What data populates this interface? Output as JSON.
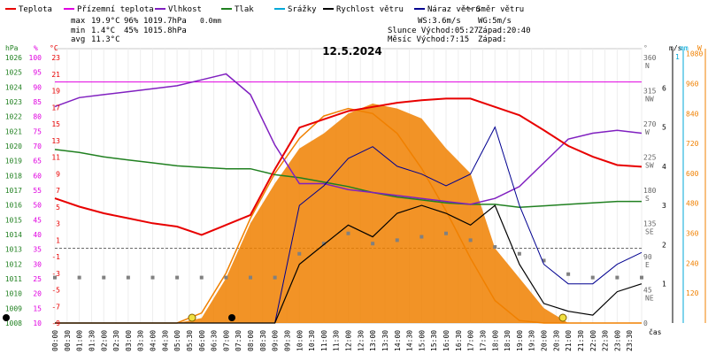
{
  "chart_data": {
    "type": "line",
    "title": "12.5.2024",
    "xlabel": "čas",
    "colors": {
      "temperature": "#e80000",
      "feels_like": "#e000e0",
      "humidity": "#8020c0",
      "pressure": "#208020",
      "rain": "#00a8d8",
      "wind_speed": "#000000",
      "wind_gust": "#000090",
      "wind_dir": "#808080",
      "sun": "#f08000"
    },
    "legend": [
      {
        "key": "temperature",
        "label": "Teplota"
      },
      {
        "key": "feels_like",
        "label": "Přízemní teplota"
      },
      {
        "key": "humidity",
        "label": "Vlhkost"
      },
      {
        "key": "pressure",
        "label": "Tlak"
      },
      {
        "key": "rain",
        "label": "Srážky"
      },
      {
        "key": "wind_speed",
        "label": "Rychlost větru"
      },
      {
        "key": "wind_gust",
        "label": "Náraz větru"
      },
      {
        "key": "wind_dir",
        "label": "Směr větru"
      }
    ],
    "stats": {
      "max_label": "max",
      "min_label": "min",
      "avg_label": "avg",
      "max_temp": "19.9°C",
      "max_hum": "96%",
      "max_press": "1019.7hPa",
      "max_rain": "0.0mm",
      "min_temp": "1.4°C",
      "min_hum": "45%",
      "min_press": "1015.8hPa",
      "avg_temp": "11.3°C",
      "ws": "WS:3.6m/s",
      "wg": "WG:5m/s",
      "sunrise_label": "Slunce Východ:05:27",
      "sunset_label": "Západ:20:40",
      "moonrise_label": "Měsíc  Východ:7:15",
      "moonset_label": "Západ:"
    },
    "axes": {
      "hpa_unit": "hPa",
      "pct_unit": "%",
      "temp_unit": "°C",
      "deg_unit": "°",
      "ms_unit": "m/s",
      "mm_unit": "mm",
      "w_unit": "W",
      "hpa_ticks": [
        "1026",
        "1025",
        "1024",
        "1023",
        "1022",
        "1021",
        "1020",
        "1019",
        "1018",
        "1017",
        "1016",
        "1015",
        "1014",
        "1013",
        "1012",
        "1011",
        "1010",
        "1009",
        "1008"
      ],
      "pct_ticks": [
        "100",
        "95",
        "90",
        "85",
        "80",
        "75",
        "70",
        "65",
        "60",
        "55",
        "50",
        "45",
        "40",
        "35",
        "30",
        "25",
        "20",
        "15",
        "10"
      ],
      "temp_ticks": [
        "23",
        "21",
        "19",
        "17",
        "15",
        "13",
        "11",
        "9",
        "7",
        "5",
        "3",
        "1",
        "-1",
        "-3",
        "-5",
        "-7",
        "-9"
      ],
      "dir_ticks": [
        {
          "deg": "360",
          "lbl": "N"
        },
        {
          "deg": "315",
          "lbl": "NW"
        },
        {
          "deg": "270",
          "lbl": "W"
        },
        {
          "deg": "225",
          "lbl": "SW"
        },
        {
          "deg": "180",
          "lbl": "S"
        },
        {
          "deg": "135",
          "lbl": "SE"
        },
        {
          "deg": "90",
          "lbl": "E"
        },
        {
          "deg": "45",
          "lbl": "NE"
        },
        {
          "deg": "0",
          "lbl": ""
        }
      ],
      "ms_ticks": [
        "6",
        "5",
        "4",
        "3",
        "2",
        "1"
      ],
      "mm_ticks": [
        "1"
      ],
      "w_ticks": [
        "1080",
        "960",
        "840",
        "720",
        "600",
        "480",
        "360",
        "240",
        "120"
      ],
      "time_ticks": [
        "00:00",
        "00:30",
        "01:00",
        "01:30",
        "02:00",
        "02:30",
        "03:00",
        "03:30",
        "04:00",
        "04:30",
        "05:00",
        "05:30",
        "06:00",
        "06:30",
        "07:00",
        "07:30",
        "08:00",
        "08:30",
        "09:00",
        "09:30",
        "10:00",
        "10:30",
        "11:00",
        "11:30",
        "12:00",
        "12:30",
        "13:00",
        "13:30",
        "14:00",
        "14:30",
        "15:00",
        "15:30",
        "16:00",
        "16:30",
        "17:00",
        "17:30",
        "18:00",
        "18:30",
        "19:00",
        "19:30",
        "20:00",
        "20:30",
        "21:00",
        "21:30",
        "22:00",
        "22:30",
        "23:00",
        "23:30"
      ]
    },
    "hours": [
      0,
      1,
      2,
      3,
      4,
      5,
      6,
      7,
      8,
      9,
      10,
      11,
      12,
      13,
      14,
      15,
      16,
      17,
      18,
      19,
      20,
      21,
      22,
      23,
      24
    ],
    "series": {
      "temperature": [
        6.0,
        5.0,
        4.2,
        3.6,
        3.0,
        2.6,
        1.6,
        2.8,
        4.0,
        9.5,
        14.5,
        15.5,
        16.5,
        17.0,
        17.5,
        17.8,
        18.0,
        18.0,
        17.0,
        16.0,
        14.2,
        12.3,
        11.0,
        10.0,
        9.8
      ],
      "feels_like": [
        20,
        20,
        20,
        20,
        20,
        20,
        20,
        20,
        20,
        20,
        20,
        20,
        20,
        20,
        20,
        20,
        20,
        20,
        20,
        20,
        20,
        20,
        20,
        20,
        20
      ],
      "humidity": [
        83,
        86,
        87,
        88,
        89,
        90,
        92,
        94,
        87,
        70,
        57,
        57,
        55,
        54,
        53,
        52,
        51,
        50,
        52,
        56,
        64,
        72,
        74,
        75,
        74
      ],
      "pressure": [
        1019.7,
        1019.5,
        1019.2,
        1019.0,
        1018.8,
        1018.6,
        1018.5,
        1018.4,
        1018.4,
        1018.0,
        1017.8,
        1017.5,
        1017.2,
        1016.8,
        1016.5,
        1016.3,
        1016.1,
        1016.0,
        1016.0,
        1015.8,
        1015.9,
        1016.0,
        1016.1,
        1016.2,
        1016.2
      ],
      "wind_speed": [
        0,
        0,
        0,
        0,
        0,
        0,
        0,
        0,
        0,
        0,
        1.5,
        2.0,
        2.5,
        2.2,
        2.8,
        3.0,
        2.8,
        2.5,
        3.0,
        1.5,
        0.5,
        0.3,
        0.2,
        0.8,
        1.0
      ],
      "wind_gust": [
        0,
        0,
        0,
        0,
        0,
        0,
        0,
        0,
        0,
        0,
        3.0,
        3.5,
        4.2,
        4.5,
        4.0,
        3.8,
        3.5,
        3.8,
        5.0,
        3.0,
        1.5,
        1.0,
        1.0,
        1.5,
        1.8
      ],
      "solar": [
        0,
        0,
        0,
        0,
        0,
        0,
        20,
        180,
        400,
        560,
        700,
        760,
        840,
        880,
        860,
        820,
        700,
        600,
        300,
        180,
        60,
        0,
        0,
        0,
        0
      ],
      "sun_theoretical": [
        0,
        0,
        0,
        0,
        0,
        0,
        40,
        200,
        420,
        600,
        740,
        830,
        860,
        840,
        760,
        620,
        450,
        260,
        90,
        10,
        0,
        0,
        0,
        0,
        0
      ],
      "wind_dir": [
        45,
        45,
        45,
        45,
        45,
        45,
        45,
        45,
        45,
        45,
        80,
        95,
        110,
        95,
        100,
        105,
        110,
        100,
        90,
        80,
        70,
        50,
        45,
        45,
        45
      ]
    }
  }
}
